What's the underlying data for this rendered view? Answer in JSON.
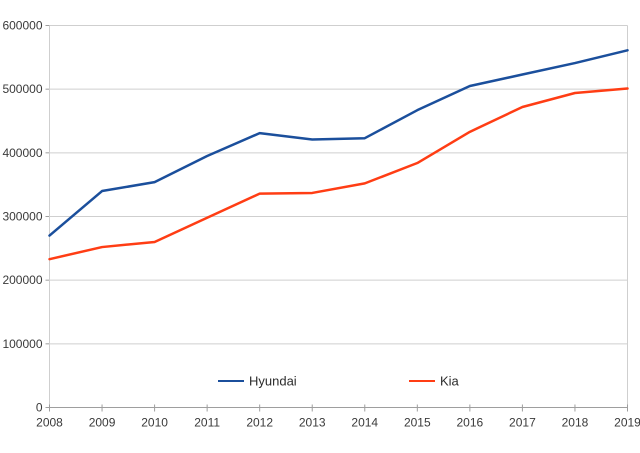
{
  "chart_data": {
    "type": "line",
    "title": "",
    "xlabel": "",
    "ylabel": "",
    "x": [
      2008,
      2009,
      2010,
      2011,
      2012,
      2013,
      2014,
      2015,
      2016,
      2017,
      2018,
      2019
    ],
    "series": [
      {
        "name": "Hyundai",
        "color": "#1b4f9c",
        "values": [
          270000,
          340000,
          354000,
          395000,
          431000,
          421000,
          423000,
          467000,
          505000,
          523000,
          541000,
          561000
        ]
      },
      {
        "name": "Kia",
        "color": "#ff3d14",
        "values": [
          233000,
          252000,
          260000,
          298000,
          336000,
          337000,
          352000,
          384000,
          433000,
          472000,
          494000,
          501000
        ]
      }
    ],
    "ylim": [
      0,
      600000
    ],
    "ytick_step": 100000,
    "ytick_labels": [
      "0",
      "100000",
      "200000",
      "300000",
      "400000",
      "500000",
      "600000"
    ],
    "grid": "horizontal",
    "legend_position": "bottom-inside",
    "legend_entries": [
      "Hyundai",
      "Kia"
    ]
  },
  "colors": {
    "background": "#ffffff",
    "hyundai_line": "#1b4f9c",
    "kia_line": "#ff3d14",
    "gridline": "#cfcfcf",
    "axis_line": "#9e9e9e",
    "tick_label_text": "#3a3a3a",
    "legend_text": "#2b2b2b"
  }
}
